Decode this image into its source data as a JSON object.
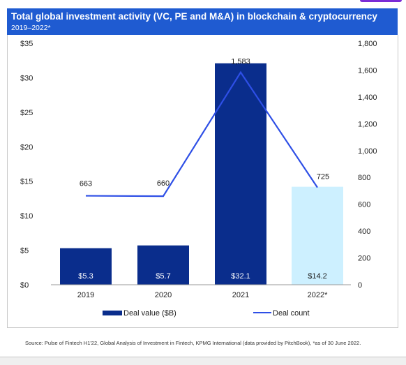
{
  "header": {
    "title": "Total global investment activity (VC, PE and M&A) in blockchain & cryptocurrency",
    "subtitle": "2019–2022*"
  },
  "colors": {
    "header_bg": "#1f5bd1",
    "bar_main": "#0a2d8c",
    "bar_partial": "#cdf0ff",
    "line": "#2e4fe6",
    "accent": "#7a2cd6"
  },
  "chart_data": {
    "type": "bar",
    "categories": [
      "2019",
      "2020",
      "2021",
      "2022*"
    ],
    "series": [
      {
        "name": "Deal value ($B)",
        "type": "bar",
        "axis": "left",
        "values": [
          5.3,
          5.7,
          32.1,
          14.2
        ],
        "labels": [
          "$5.3",
          "$5.7",
          "$32.1",
          "$14.2"
        ]
      },
      {
        "name": "Deal count",
        "type": "line",
        "axis": "right",
        "values": [
          663,
          660,
          1583,
          725
        ],
        "labels": [
          "663",
          "660",
          "1,583",
          "725"
        ]
      }
    ],
    "left_axis": {
      "range": [
        0,
        35
      ],
      "ticks": [
        0,
        5,
        10,
        15,
        20,
        25,
        30,
        35
      ],
      "tick_labels": [
        "$0",
        "$5",
        "$10",
        "$15",
        "$20",
        "$25",
        "$30",
        "$35"
      ]
    },
    "right_axis": {
      "range": [
        0,
        1800
      ],
      "ticks": [
        0,
        200,
        400,
        600,
        800,
        1000,
        1200,
        1400,
        1600,
        1800
      ],
      "tick_labels": [
        "0",
        "200",
        "400",
        "600",
        "800",
        "1,000",
        "1,200",
        "1,400",
        "1,600",
        "1,800"
      ]
    },
    "grid": false,
    "legend": "bottom"
  },
  "footer": {
    "source": "Source: Pulse of Fintech H1'22, Global Analysis of Investment in Fintech, KPMG International (data provided by PitchBook), *as of 30 June 2022."
  }
}
